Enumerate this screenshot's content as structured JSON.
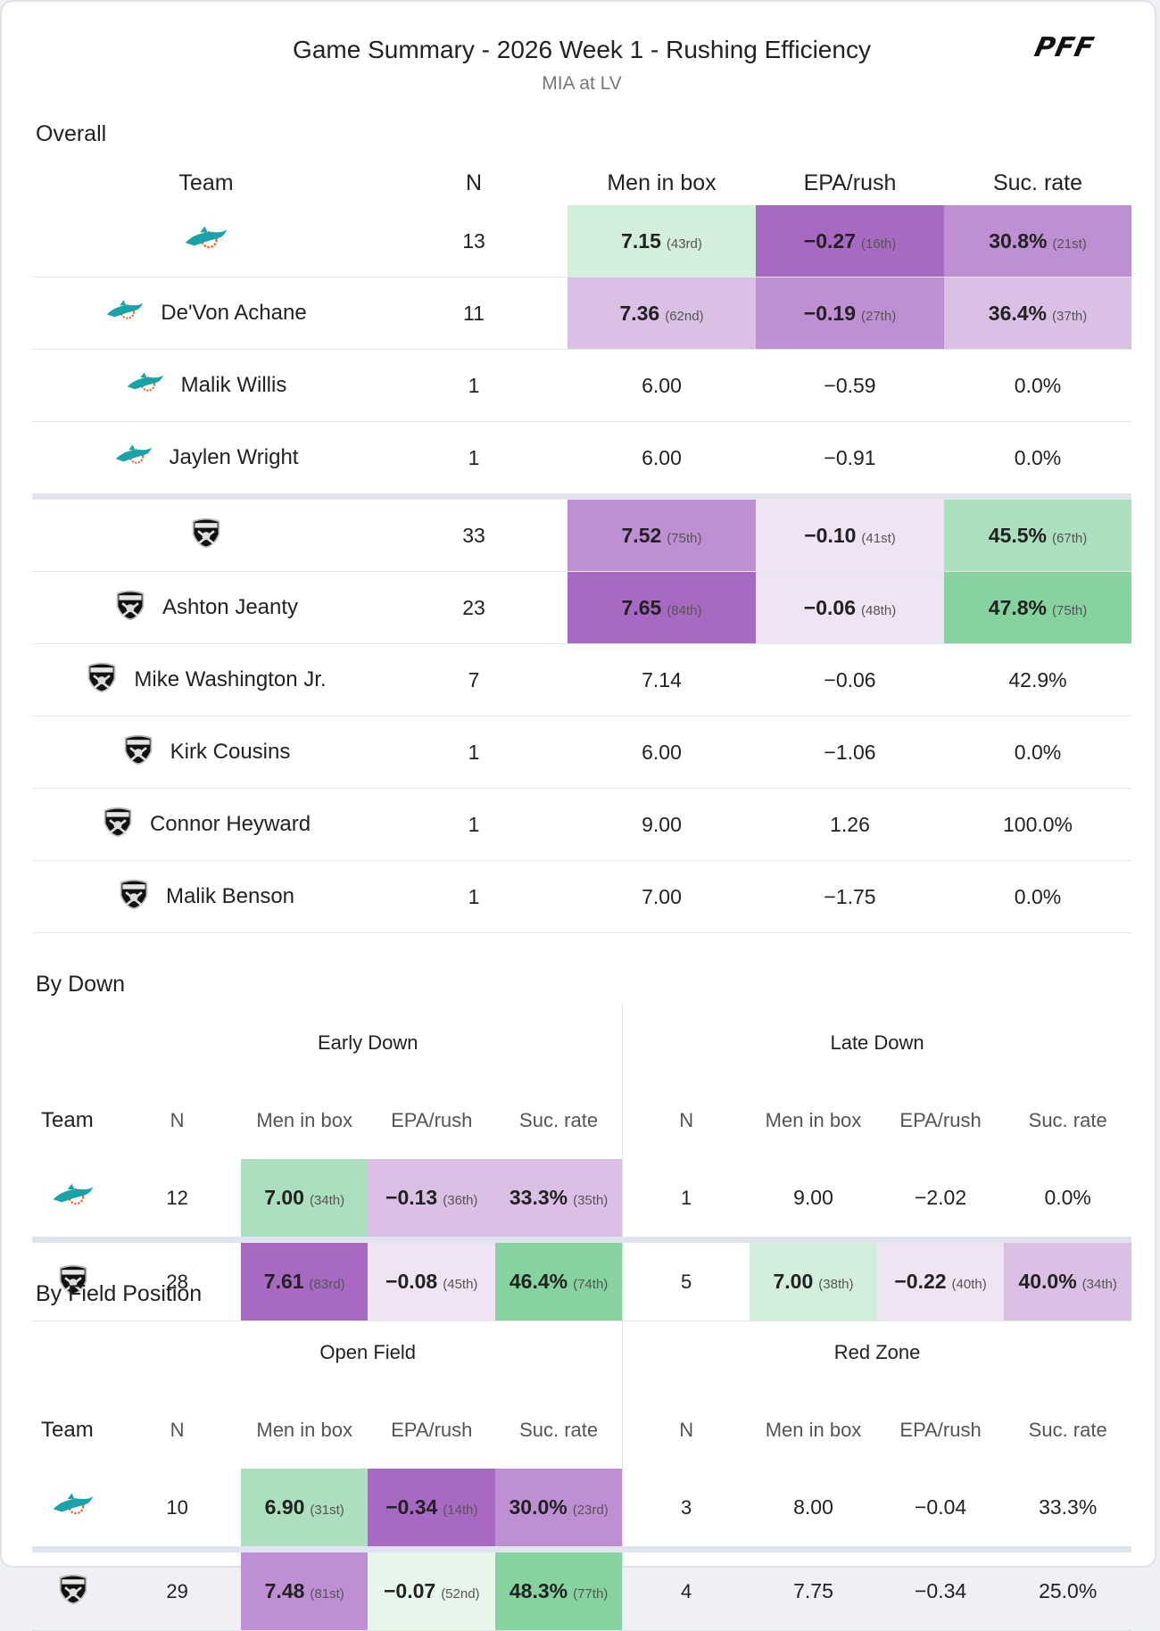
{
  "header": {
    "title": "Game Summary - 2026 Week 1 - Rushing Efficiency",
    "subtitle": "MIA at LV",
    "brand": "PFF"
  },
  "colors": {
    "purple_dark": "#a869c2",
    "purple_mid": "#bf8fd3",
    "purple_light": "#dbc0e6",
    "purple_faint": "#efe3f4",
    "green_dark": "#86d3a0",
    "green_mid": "#abdfbd",
    "green_light": "#d3efdb",
    "green_faint": "#e6f6ea"
  },
  "overall": {
    "section": "Overall",
    "headers": {
      "team": "Team",
      "n": "N",
      "box": "Men in box",
      "epa": "EPA/rush",
      "suc": "Suc. rate"
    },
    "rows": [
      {
        "team": "MIA",
        "name": "",
        "n": "13",
        "box": "7.15",
        "box_rank": "(43rd)",
        "box_color": "green_light",
        "epa": "−0.27",
        "epa_rank": "(16th)",
        "epa_color": "purple_dark",
        "suc": "30.8%",
        "suc_rank": "(21st)",
        "suc_color": "purple_mid"
      },
      {
        "team": "MIA",
        "name": "De'Von Achane",
        "n": "11",
        "box": "7.36",
        "box_rank": "(62nd)",
        "box_color": "purple_light",
        "epa": "−0.19",
        "epa_rank": "(27th)",
        "epa_color": "purple_mid",
        "suc": "36.4%",
        "suc_rank": "(37th)",
        "suc_color": "purple_light"
      },
      {
        "team": "MIA",
        "name": "Malik Willis",
        "n": "1",
        "box": "6.00",
        "epa": "−0.59",
        "suc": "0.0%"
      },
      {
        "team": "MIA",
        "name": "Jaylen Wright",
        "n": "1",
        "box": "6.00",
        "epa": "−0.91",
        "suc": "0.0%"
      },
      {
        "team": "LV",
        "name": "",
        "n": "33",
        "box": "7.52",
        "box_rank": "(75th)",
        "box_color": "purple_mid",
        "epa": "−0.10",
        "epa_rank": "(41st)",
        "epa_color": "purple_faint",
        "suc": "45.5%",
        "suc_rank": "(67th)",
        "suc_color": "green_mid"
      },
      {
        "team": "LV",
        "name": "Ashton Jeanty",
        "n": "23",
        "box": "7.65",
        "box_rank": "(84th)",
        "box_color": "purple_dark",
        "epa": "−0.06",
        "epa_rank": "(48th)",
        "epa_color": "purple_faint",
        "suc": "47.8%",
        "suc_rank": "(75th)",
        "suc_color": "green_dark"
      },
      {
        "team": "LV",
        "name": "Mike Washington Jr.",
        "n": "7",
        "box": "7.14",
        "epa": "−0.06",
        "suc": "42.9%"
      },
      {
        "team": "LV",
        "name": "Kirk Cousins",
        "n": "1",
        "box": "6.00",
        "epa": "−1.06",
        "suc": "0.0%"
      },
      {
        "team": "LV",
        "name": "Connor Heyward",
        "n": "1",
        "box": "9.00",
        "epa": "1.26",
        "suc": "100.0%"
      },
      {
        "team": "LV",
        "name": "Malik Benson",
        "n": "1",
        "box": "7.00",
        "epa": "−1.75",
        "suc": "0.0%"
      }
    ]
  },
  "by_down": {
    "section": "By Down",
    "group_a": "Early Down",
    "group_b": "Late Down",
    "sub": {
      "team": "Team",
      "n": "N",
      "box": "Men in box",
      "epa": "EPA/rush",
      "suc": "Suc. rate"
    },
    "rows": [
      {
        "team": "MIA",
        "a": {
          "n": "12",
          "box": "7.00",
          "box_rank": "(34th)",
          "box_color": "green_mid",
          "epa": "−0.13",
          "epa_rank": "(36th)",
          "epa_color": "purple_light",
          "suc": "33.3%",
          "suc_rank": "(35th)",
          "suc_color": "purple_light"
        },
        "b": {
          "n": "1",
          "box": "9.00",
          "epa": "−2.02",
          "suc": "0.0%"
        }
      },
      {
        "team": "LV",
        "a": {
          "n": "28",
          "box": "7.61",
          "box_rank": "(83rd)",
          "box_color": "purple_dark",
          "epa": "−0.08",
          "epa_rank": "(45th)",
          "epa_color": "purple_faint",
          "suc": "46.4%",
          "suc_rank": "(74th)",
          "suc_color": "green_dark"
        },
        "b": {
          "n": "5",
          "box": "7.00",
          "box_rank": "(38th)",
          "box_color": "green_light",
          "epa": "−0.22",
          "epa_rank": "(40th)",
          "epa_color": "purple_faint",
          "suc": "40.0%",
          "suc_rank": "(34th)",
          "suc_color": "purple_light"
        }
      }
    ]
  },
  "by_field": {
    "section": "By Field Position",
    "group_a": "Open Field",
    "group_b": "Red Zone",
    "sub": {
      "team": "Team",
      "n": "N",
      "box": "Men in box",
      "epa": "EPA/rush",
      "suc": "Suc. rate"
    },
    "rows": [
      {
        "team": "MIA",
        "a": {
          "n": "10",
          "box": "6.90",
          "box_rank": "(31st)",
          "box_color": "green_mid",
          "epa": "−0.34",
          "epa_rank": "(14th)",
          "epa_color": "purple_dark",
          "suc": "30.0%",
          "suc_rank": "(23rd)",
          "suc_color": "purple_mid"
        },
        "b": {
          "n": "3",
          "box": "8.00",
          "epa": "−0.04",
          "suc": "33.3%"
        }
      },
      {
        "team": "LV",
        "a": {
          "n": "29",
          "box": "7.48",
          "box_rank": "(81st)",
          "box_color": "purple_mid",
          "epa": "−0.07",
          "epa_rank": "(52nd)",
          "epa_color": "green_faint",
          "suc": "48.3%",
          "suc_rank": "(77th)",
          "suc_color": "green_dark"
        },
        "b": {
          "n": "4",
          "box": "7.75",
          "epa": "−0.34",
          "suc": "25.0%"
        }
      }
    ]
  }
}
